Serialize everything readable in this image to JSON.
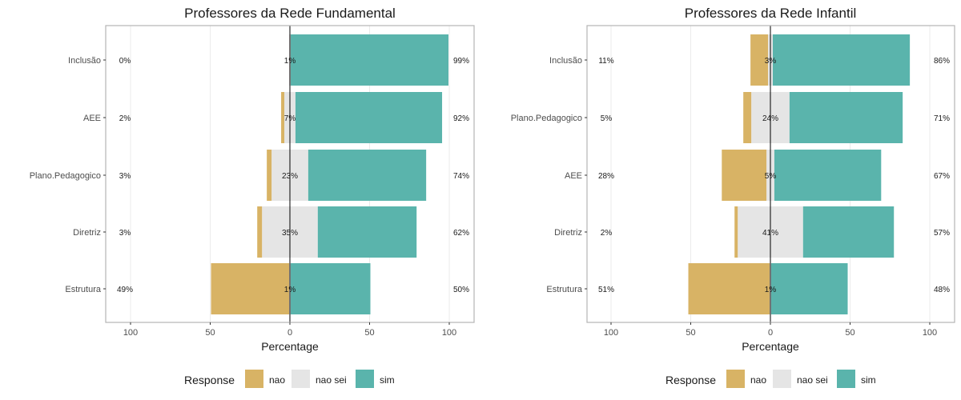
{
  "chart_data": [
    {
      "type": "bar",
      "title": "Professores da Rede Fundamental",
      "xlabel": "Percentage",
      "xlim": [
        -100,
        100
      ],
      "x_ticks": [
        "100",
        "50",
        "0",
        "50",
        "100"
      ],
      "x_tick_values": [
        -100,
        -50,
        0,
        50,
        100
      ],
      "categories": [
        "Inclusão",
        "AEE",
        "Plano.Pedagogico",
        "Diretriz",
        "Estrutura"
      ],
      "series": [
        {
          "name": "nao",
          "values": [
            0,
            2,
            3,
            3,
            49
          ]
        },
        {
          "name": "nao sei",
          "values": [
            1,
            7,
            23,
            35,
            1
          ]
        },
        {
          "name": "sim",
          "values": [
            99,
            92,
            74,
            62,
            50
          ]
        }
      ],
      "left_labels": [
        "0%",
        "2%",
        "3%",
        "3%",
        "49%"
      ],
      "center_labels": [
        "1%",
        "7%",
        "23%",
        "35%",
        "1%"
      ],
      "right_labels": [
        "99%",
        "92%",
        "74%",
        "62%",
        "50%"
      ]
    },
    {
      "type": "bar",
      "title": "Professores da Rede Infantil",
      "xlabel": "Percentage",
      "xlim": [
        -100,
        100
      ],
      "x_ticks": [
        "100",
        "50",
        "0",
        "50",
        "100"
      ],
      "x_tick_values": [
        -100,
        -50,
        0,
        50,
        100
      ],
      "categories": [
        "Inclusão",
        "Plano.Pedagogico",
        "AEE",
        "Diretriz",
        "Estrutura"
      ],
      "series": [
        {
          "name": "nao",
          "values": [
            11,
            5,
            28,
            2,
            51
          ]
        },
        {
          "name": "nao sei",
          "values": [
            3,
            24,
            5,
            41,
            1
          ]
        },
        {
          "name": "sim",
          "values": [
            86,
            71,
            67,
            57,
            48
          ]
        }
      ],
      "left_labels": [
        "11%",
        "5%",
        "28%",
        "2%",
        "51%"
      ],
      "center_labels": [
        "3%",
        "24%",
        "5%",
        "41%",
        "1%"
      ],
      "right_labels": [
        "86%",
        "71%",
        "67%",
        "57%",
        "48%"
      ]
    }
  ],
  "legend": {
    "title": "Response",
    "items": [
      {
        "label": "nao",
        "color": "#D8B365"
      },
      {
        "label": "nao sei",
        "color": "#E5E5E5"
      },
      {
        "label": "sim",
        "color": "#5AB4AC"
      }
    ]
  },
  "colors": {
    "nao": "#D8B365",
    "nao_sei": "#E5E5E5",
    "sim": "#5AB4AC",
    "panel_border": "#b3b3b3",
    "grid": "#ebebeb"
  }
}
